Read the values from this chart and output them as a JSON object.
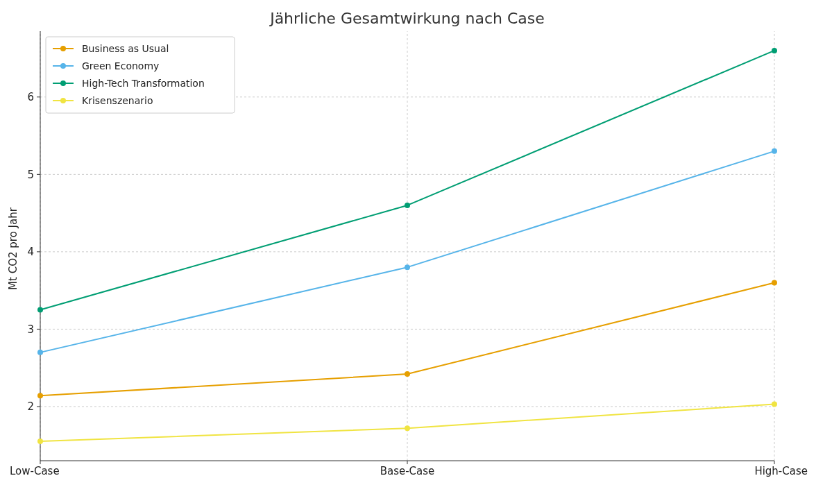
{
  "chart_data": {
    "type": "line",
    "title": "Jährliche Gesamtwirkung nach Case",
    "ylabel": "Mt CO2 pro Jahr",
    "categories": [
      "Low-Case",
      "Base-Case",
      "High-Case"
    ],
    "series": [
      {
        "name": "Business as Usual",
        "color": "#e69f00",
        "values": [
          2.14,
          2.42,
          3.6
        ]
      },
      {
        "name": "Green Economy",
        "color": "#56b4e9",
        "values": [
          2.7,
          3.8,
          5.3
        ]
      },
      {
        "name": "High-Tech Transformation",
        "color": "#009e73",
        "values": [
          3.25,
          4.6,
          6.6
        ]
      },
      {
        "name": "Krisenszenario",
        "color": "#f0e442",
        "values": [
          1.55,
          1.72,
          2.03
        ]
      }
    ],
    "ylim": [
      1.3,
      6.85
    ],
    "yticks": [
      2,
      3,
      4,
      5,
      6
    ],
    "grid": true,
    "legend": "top left",
    "marker": "circle",
    "line_style": "solid"
  }
}
